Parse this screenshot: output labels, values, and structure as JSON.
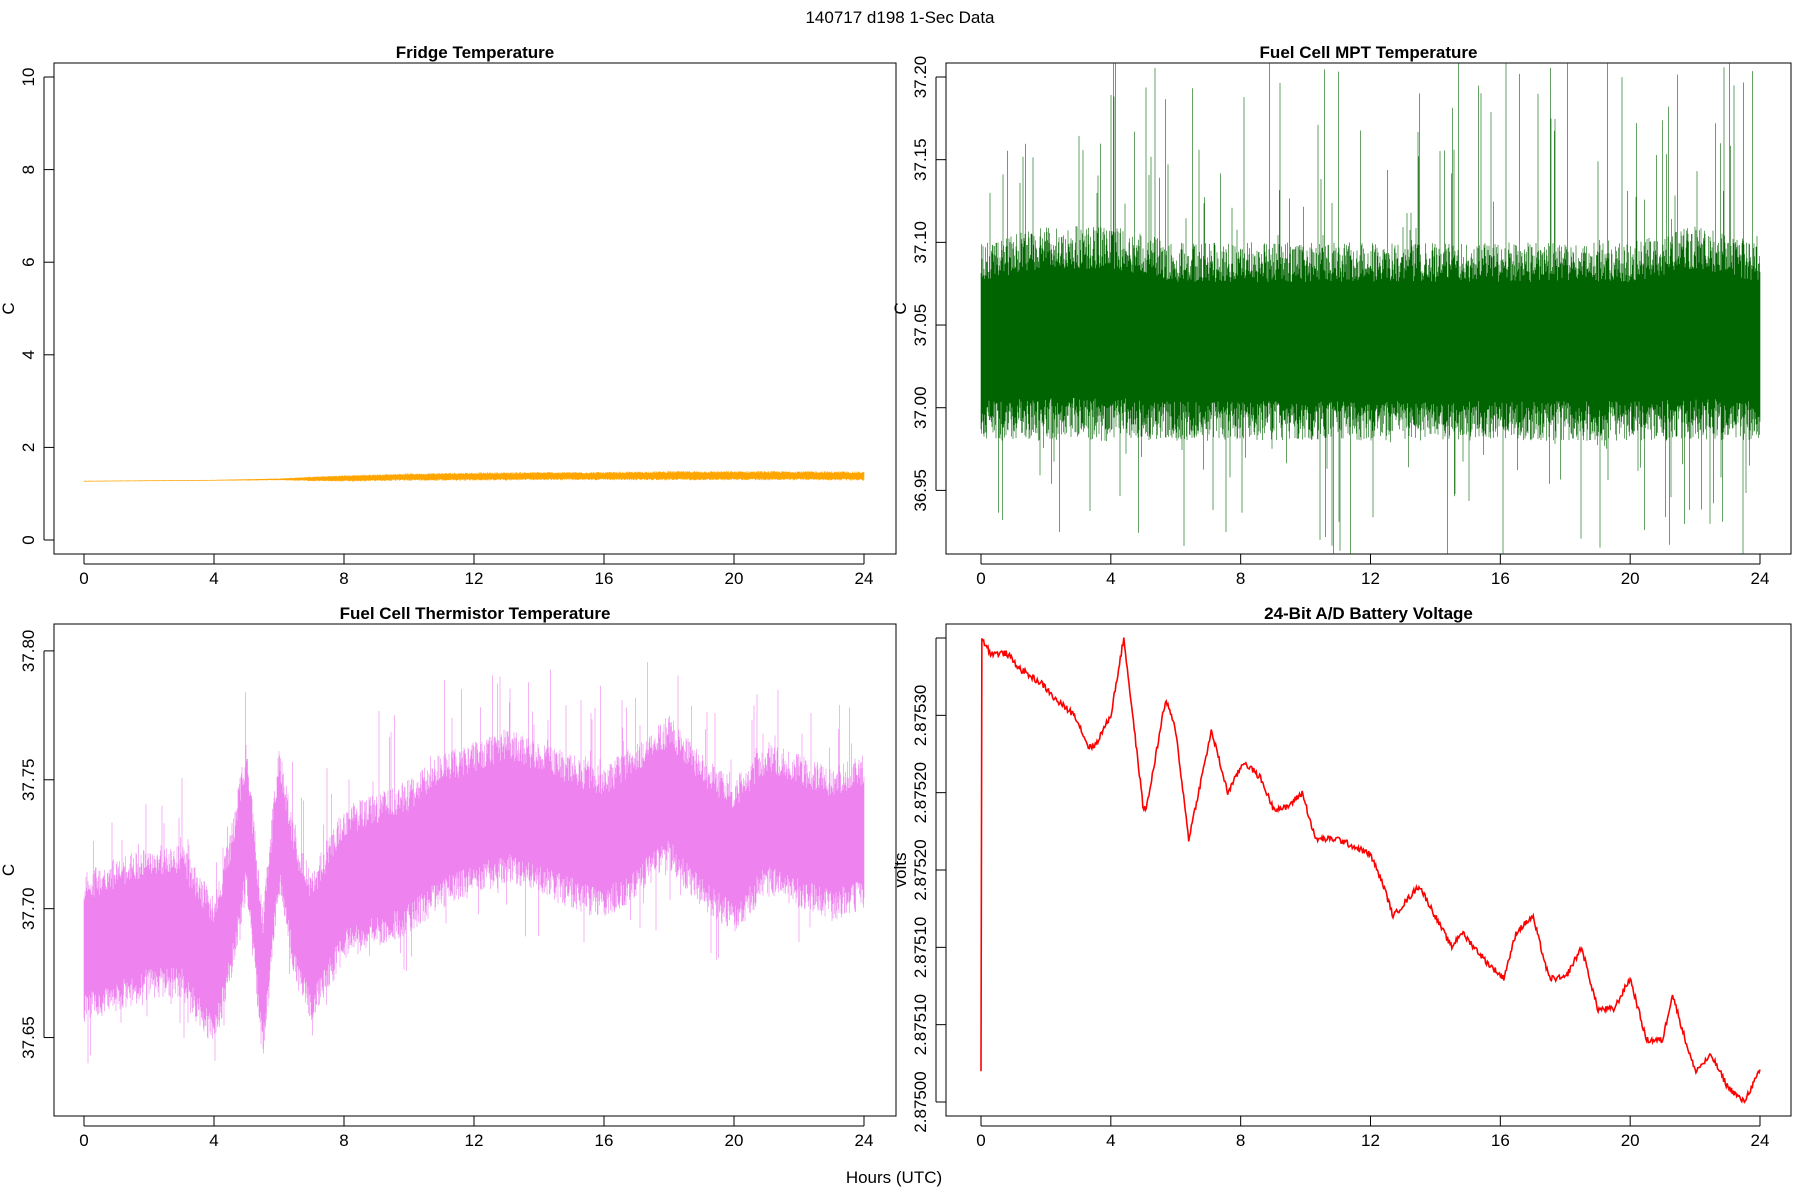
{
  "figure": {
    "title": "140717   d198   1-Sec Data",
    "xlabel": "Hours (UTC)"
  },
  "chart_data": [
    {
      "type": "line",
      "title": "Fridge Temperature",
      "xlabel": "",
      "ylabel": "C",
      "xlim": [
        0,
        24
      ],
      "ylim": [
        0,
        10
      ],
      "xticks": [
        "0",
        "4",
        "8",
        "12",
        "16",
        "20",
        "24"
      ],
      "yticks": [
        "0",
        "2",
        "4",
        "6",
        "8",
        "10"
      ],
      "color": "#FFA500",
      "series": [
        {
          "x": [
            0,
            2,
            4,
            6,
            7,
            8,
            10,
            12,
            14,
            16,
            18,
            20,
            22,
            24
          ],
          "y": [
            1.27,
            1.28,
            1.29,
            1.31,
            1.32,
            1.33,
            1.36,
            1.37,
            1.38,
            1.38,
            1.39,
            1.39,
            1.39,
            1.38
          ],
          "band": [
            0.01,
            0.01,
            0.01,
            0.02,
            0.05,
            0.07,
            0.08,
            0.09,
            0.09,
            0.09,
            0.1,
            0.1,
            0.1,
            0.1
          ]
        }
      ]
    },
    {
      "type": "line",
      "title": "Fuel Cell MPT Temperature",
      "xlabel": "",
      "ylabel": "C",
      "xlim": [
        0,
        24
      ],
      "ylim": [
        36.92,
        37.2
      ],
      "xticks": [
        "0",
        "4",
        "8",
        "12",
        "16",
        "20",
        "24"
      ],
      "yticks": [
        "36.95",
        "37.00",
        "37.05",
        "37.10",
        "37.15",
        "37.20"
      ],
      "color": "#006400",
      "series": [
        {
          "x": [
            0,
            2,
            4,
            6,
            8,
            10,
            12,
            14,
            16,
            18,
            20,
            22,
            24
          ],
          "y": [
            37.04,
            37.045,
            37.045,
            37.04,
            37.04,
            37.04,
            37.04,
            37.04,
            37.04,
            37.04,
            37.04,
            37.045,
            37.04
          ],
          "band": [
            0.06,
            0.065,
            0.065,
            0.06,
            0.06,
            0.06,
            0.06,
            0.06,
            0.06,
            0.06,
            0.06,
            0.065,
            0.06
          ],
          "spike": 0.155
        }
      ]
    },
    {
      "type": "line",
      "title": "Fuel Cell Thermistor Temperature",
      "xlabel": "",
      "ylabel": "C",
      "xlim": [
        0,
        24
      ],
      "ylim": [
        37.625,
        37.805
      ],
      "xticks": [
        "0",
        "4",
        "8",
        "12",
        "16",
        "20",
        "24"
      ],
      "yticks": [
        "37.65",
        "37.70",
        "37.75",
        "37.80"
      ],
      "color": "#EE82EE",
      "series": [
        {
          "x": [
            0,
            1,
            2,
            3,
            4,
            4.5,
            5,
            5.5,
            6,
            6.5,
            7,
            8,
            9,
            10,
            11,
            12,
            13,
            14,
            15,
            16,
            17,
            18,
            19,
            20,
            21,
            22,
            23,
            24
          ],
          "y": [
            37.685,
            37.69,
            37.695,
            37.695,
            37.675,
            37.7,
            37.735,
            37.67,
            37.735,
            37.7,
            37.685,
            37.71,
            37.715,
            37.72,
            37.73,
            37.735,
            37.74,
            37.735,
            37.73,
            37.725,
            37.735,
            37.745,
            37.73,
            37.72,
            37.735,
            37.73,
            37.725,
            37.73
          ],
          "band": [
            0.03,
            0.03,
            0.03,
            0.03,
            0.03,
            0.03,
            0.03,
            0.03,
            0.03,
            0.03,
            0.03,
            0.03,
            0.03,
            0.03,
            0.03,
            0.03,
            0.03,
            0.03,
            0.03,
            0.03,
            0.03,
            0.03,
            0.03,
            0.03,
            0.03,
            0.03,
            0.03,
            0.03
          ],
          "spike": 0.04
        }
      ]
    },
    {
      "type": "line",
      "title": "24-Bit A/D Battery Voltage",
      "xlabel": "",
      "ylabel": "volts",
      "xlim": [
        0,
        24
      ],
      "ylim": [
        2.875,
        2.8753
      ],
      "xticks": [
        "0",
        "4",
        "8",
        "12",
        "16",
        "20",
        "24"
      ],
      "yticks": [
        "2.87500",
        "2.87510",
        "2.87510",
        "2.87520",
        "2.87520",
        "2.87530"
      ],
      "ytick_values": [
        2.875,
        2.87505,
        2.8751,
        2.87515,
        2.8752,
        2.87525,
        2.8753
      ],
      "color": "#FF0000",
      "series": [
        {
          "x": [
            0,
            0.01,
            0.02,
            0.3,
            0.8,
            1.2,
            1.9,
            2.3,
            2.9,
            3.3,
            3.5,
            4,
            4.4,
            5,
            5.1,
            5.6,
            5.7,
            6,
            6.4,
            7,
            7.1,
            7.6,
            8.1,
            8.6,
            9,
            9.4,
            9.9,
            10.3,
            11,
            12,
            12.4,
            12.7,
            13.5,
            14,
            14.5,
            14.8,
            15.2,
            15.6,
            16.1,
            16.5,
            17,
            17.5,
            18,
            18.5,
            19,
            19.5,
            20,
            20.5,
            21,
            21.3,
            21.7,
            22,
            22.5,
            23,
            23.5,
            24
          ],
          "y": [
            2.87502,
            2.8753,
            2.8753,
            2.87529,
            2.87529,
            2.87528,
            2.87527,
            2.87526,
            2.87525,
            2.87523,
            2.87523,
            2.87525,
            2.8753,
            2.87519,
            2.87519,
            2.87525,
            2.87526,
            2.87524,
            2.87517,
            2.87523,
            2.87524,
            2.8752,
            2.87522,
            2.87521,
            2.87519,
            2.87519,
            2.8752,
            2.87517,
            2.87517,
            2.87516,
            2.87514,
            2.87512,
            2.87514,
            2.87512,
            2.8751,
            2.87511,
            2.8751,
            2.87509,
            2.87508,
            2.87511,
            2.87512,
            2.87508,
            2.87508,
            2.8751,
            2.87506,
            2.87506,
            2.87508,
            2.87504,
            2.87504,
            2.87507,
            2.87504,
            2.87502,
            2.87503,
            2.87501,
            2.875,
            2.87502
          ]
        }
      ]
    }
  ]
}
